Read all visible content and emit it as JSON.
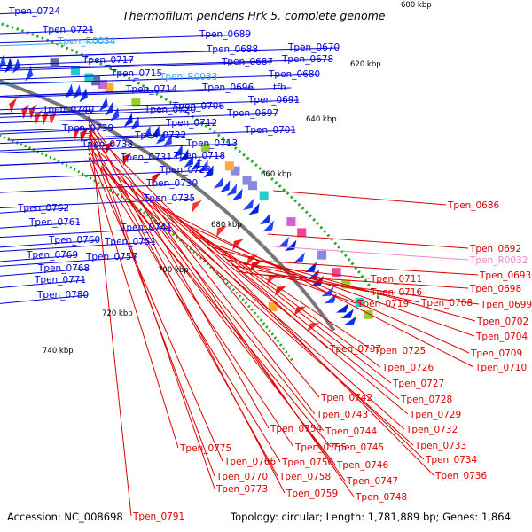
{
  "title": "Thermofilum pendens Hrk 5, complete genome",
  "footer": {
    "accession": "Accession: NC_008698",
    "topology": "Topology: circular; Length: 1,781,889 bp; Genes: 1,864"
  },
  "colors": {
    "forward_label": "#0000dd",
    "reverse_label": "#dd0000",
    "rna_forward": "#33aaee",
    "rna_reverse": "#ee88cc",
    "backbone": "#777777",
    "tick": "#22aa22"
  },
  "kbp_labels": [
    "600 kbp",
    "620 kbp",
    "640 kbp",
    "660 kbp",
    "680 kbp",
    "700 kbp",
    "720 kbp",
    "740 kbp"
  ],
  "left_labels": [
    {
      "text": "Tpen_0724",
      "kind": "gene"
    },
    {
      "text": "Tpen_0721",
      "kind": "gene"
    },
    {
      "text": "Tpen_R0034",
      "kind": "rna"
    },
    {
      "text": "Tpen_0717",
      "kind": "gene"
    },
    {
      "text": "Tpen_0715",
      "kind": "gene"
    },
    {
      "text": "Tpen_R0033",
      "kind": "rna"
    },
    {
      "text": "Tpen_0714",
      "kind": "gene"
    },
    {
      "text": "Tpen_0689",
      "kind": "gene"
    },
    {
      "text": "Tpen_0688",
      "kind": "gene"
    },
    {
      "text": "Tpen_0687",
      "kind": "gene"
    },
    {
      "text": "Tpen_0670",
      "kind": "gene"
    },
    {
      "text": "Tpen_0678",
      "kind": "gene"
    },
    {
      "text": "Tpen_0680",
      "kind": "gene"
    },
    {
      "text": "tfb",
      "kind": "gene"
    },
    {
      "text": "Tpen_0696",
      "kind": "gene"
    },
    {
      "text": "Tpen_0691",
      "kind": "gene"
    },
    {
      "text": "Tpen_0697",
      "kind": "gene"
    },
    {
      "text": "Tpen_0706",
      "kind": "gene"
    },
    {
      "text": "Tpen_0720",
      "kind": "gene"
    },
    {
      "text": "Tpen_0740",
      "kind": "gene"
    },
    {
      "text": "Tpen_0712",
      "kind": "gene"
    },
    {
      "text": "Tpen_0701",
      "kind": "gene"
    },
    {
      "text": "Tpen_0739",
      "kind": "gene"
    },
    {
      "text": "Tpen_0722",
      "kind": "gene"
    },
    {
      "text": "Tpen_0713",
      "kind": "gene"
    },
    {
      "text": "Tpen_0738",
      "kind": "gene"
    },
    {
      "text": "Tpen_0718",
      "kind": "gene"
    },
    {
      "text": "Tpen_0731",
      "kind": "gene"
    },
    {
      "text": "Tpen_0723",
      "kind": "gene"
    },
    {
      "text": "Tpen_0730",
      "kind": "gene"
    },
    {
      "text": "Tpen_0735",
      "kind": "gene"
    },
    {
      "text": "Tpen_0762",
      "kind": "gene"
    },
    {
      "text": "Tpen_0761",
      "kind": "gene"
    },
    {
      "text": "Tpen_0741",
      "kind": "gene"
    },
    {
      "text": "Tpen_0760",
      "kind": "gene"
    },
    {
      "text": "Tpen_0751",
      "kind": "gene"
    },
    {
      "text": "Tpen_0769",
      "kind": "gene"
    },
    {
      "text": "Tpen_0757",
      "kind": "gene"
    },
    {
      "text": "Tpen_0768",
      "kind": "gene"
    },
    {
      "text": "Tpen_0771",
      "kind": "gene"
    },
    {
      "text": "Tpen_0780",
      "kind": "gene"
    }
  ],
  "right_labels": [
    {
      "text": "Tpen_0686",
      "kind": "gene"
    },
    {
      "text": "Tpen_0692",
      "kind": "gene"
    },
    {
      "text": "Tpen_R0032",
      "kind": "rna"
    },
    {
      "text": "Tpen_0693",
      "kind": "gene"
    },
    {
      "text": "Tpen_0698",
      "kind": "gene"
    },
    {
      "text": "Tpen_0711",
      "kind": "gene"
    },
    {
      "text": "Tpen_0699",
      "kind": "gene"
    },
    {
      "text": "Tpen_0716",
      "kind": "gene"
    },
    {
      "text": "Tpen_0708",
      "kind": "gene"
    },
    {
      "text": "Tpen_0719",
      "kind": "gene"
    },
    {
      "text": "Tpen_0702",
      "kind": "gene"
    },
    {
      "text": "Tpen_0704",
      "kind": "gene"
    },
    {
      "text": "Tpen_0737",
      "kind": "gene"
    },
    {
      "text": "Tpen_0725",
      "kind": "gene"
    },
    {
      "text": "Tpen_0709",
      "kind": "gene"
    },
    {
      "text": "Tpen_0726",
      "kind": "gene"
    },
    {
      "text": "Tpen_0710",
      "kind": "gene"
    },
    {
      "text": "Tpen_0727",
      "kind": "gene"
    },
    {
      "text": "Tpen_0742",
      "kind": "gene"
    },
    {
      "text": "Tpen_0728",
      "kind": "gene"
    },
    {
      "text": "Tpen_0743",
      "kind": "gene"
    },
    {
      "text": "Tpen_0729",
      "kind": "gene"
    },
    {
      "text": "Tpen_0754",
      "kind": "gene"
    },
    {
      "text": "Tpen_0744",
      "kind": "gene"
    },
    {
      "text": "Tpen_0732",
      "kind": "gene"
    },
    {
      "text": "Tpen_0755",
      "kind": "gene"
    },
    {
      "text": "Tpen_0745",
      "kind": "gene"
    },
    {
      "text": "Tpen_0733",
      "kind": "gene"
    },
    {
      "text": "Tpen_0775",
      "kind": "gene"
    },
    {
      "text": "Tpen_0766",
      "kind": "gene"
    },
    {
      "text": "Tpen_0756",
      "kind": "gene"
    },
    {
      "text": "Tpen_0746",
      "kind": "gene"
    },
    {
      "text": "Tpen_0734",
      "kind": "gene"
    },
    {
      "text": "Tpen_0770",
      "kind": "gene"
    },
    {
      "text": "Tpen_0758",
      "kind": "gene"
    },
    {
      "text": "Tpen_0747",
      "kind": "gene"
    },
    {
      "text": "Tpen_0736",
      "kind": "gene"
    },
    {
      "text": "Tpen_0773",
      "kind": "gene"
    },
    {
      "text": "Tpen_0759",
      "kind": "gene"
    },
    {
      "text": "Tpen_0748",
      "kind": "gene"
    },
    {
      "text": "Tpen_0791",
      "kind": "gene"
    }
  ]
}
